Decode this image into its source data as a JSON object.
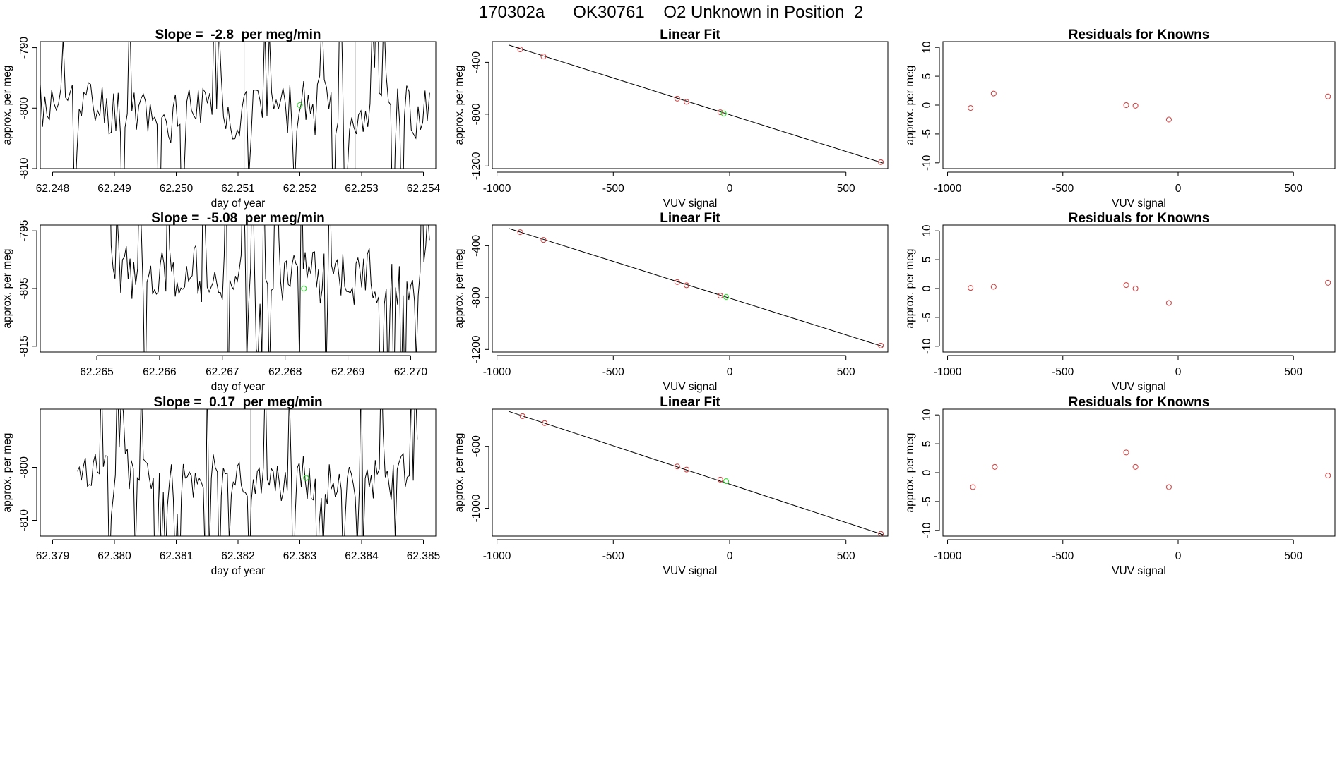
{
  "figure_title": "170302a      OK30761    O2 Unknown in Position  2",
  "chart_data": [
    {
      "type": "line",
      "title": "Slope =  -2.8  per meg/min",
      "xlabel": "day of year",
      "ylabel": "approx. per meg",
      "xlim": [
        62.2478,
        62.2542
      ],
      "ylim": [
        -810,
        -789
      ],
      "xticks": [
        62.248,
        62.249,
        62.25,
        62.251,
        62.252,
        62.253,
        62.254
      ],
      "xtick_labels": [
        "62.248",
        "62.249",
        "62.250",
        "62.251",
        "62.252",
        "62.253",
        "62.254"
      ],
      "yticks": [
        -810,
        -800,
        -790
      ],
      "ytick_labels": [
        "-810",
        "-800",
        "-790"
      ],
      "vlines": [
        62.2511,
        62.2529
      ],
      "seed": 11,
      "highlight": {
        "x": 62.252,
        "y": -799.5
      },
      "series": [
        {
          "name": "trace",
          "x_start": 62.2478,
          "x_end": 62.2541,
          "mean": -800,
          "spread": 14
        }
      ]
    },
    {
      "type": "scatter",
      "title": "Linear Fit",
      "xlabel": "VUV signal",
      "ylabel": "approx. per meg",
      "xlim": [
        -1020,
        680
      ],
      "ylim": [
        -1220,
        -240
      ],
      "xticks": [
        -1000,
        -500,
        0,
        500
      ],
      "xtick_labels": [
        "-1000",
        "-500",
        "0",
        "500"
      ],
      "yticks": [
        -1200,
        -800,
        -400
      ],
      "ytick_labels": [
        "-1200",
        "-800",
        "-400"
      ],
      "fit_line": {
        "x": [
          -950,
          660
        ],
        "y": [
          -266,
          -1178
        ]
      },
      "knowns": {
        "x": [
          -900,
          -800,
          -225,
          -185,
          -40,
          650
        ],
        "y": [
          -300,
          -355,
          -680,
          -705,
          -785,
          -1170
        ]
      },
      "unknown": {
        "x": [
          -25
        ],
        "y": [
          -795
        ]
      }
    },
    {
      "type": "scatter",
      "title": "Residuals for Knowns",
      "xlabel": "VUV signal",
      "ylabel": "approx. per meg",
      "xlim": [
        -1020,
        680
      ],
      "ylim": [
        -11,
        11
      ],
      "xticks": [
        -1000,
        -500,
        0,
        500
      ],
      "xtick_labels": [
        "-1000",
        "-500",
        "0",
        "500"
      ],
      "yticks": [
        -10,
        -5,
        0,
        5,
        10
      ],
      "ytick_labels": [
        "-10",
        "-5",
        "0",
        "5",
        "10"
      ],
      "knowns": {
        "x": [
          -900,
          -800,
          -225,
          -185,
          -40,
          650
        ],
        "y": [
          -0.5,
          2,
          0,
          -0.1,
          -2.5,
          1.5
        ]
      }
    },
    {
      "type": "line",
      "title": "Slope =  -5.08  per meg/min",
      "xlabel": "day of year",
      "ylabel": "approx. per meg",
      "xlim": [
        62.2641,
        62.2704
      ],
      "ylim": [
        -816,
        -794
      ],
      "xticks": [
        62.265,
        62.266,
        62.267,
        62.268,
        62.269,
        62.27
      ],
      "xtick_labels": [
        "62.265",
        "62.266",
        "62.267",
        "62.268",
        "62.269",
        "62.270"
      ],
      "yticks": [
        -815,
        -805,
        -795
      ],
      "ytick_labels": [
        "-815",
        "-805",
        "-795"
      ],
      "vlines": [
        62.2674
      ],
      "seed": 23,
      "highlight": {
        "x": 62.2683,
        "y": -805
      },
      "series": [
        {
          "name": "trace",
          "x_start": 62.2652,
          "x_end": 62.2703,
          "mean": -803,
          "spread": 14
        }
      ]
    },
    {
      "type": "scatter",
      "title": "Linear Fit",
      "xlabel": "VUV signal",
      "ylabel": "approx. per meg",
      "xlim": [
        -1020,
        680
      ],
      "ylim": [
        -1220,
        -240
      ],
      "xticks": [
        -1000,
        -500,
        0,
        500
      ],
      "xtick_labels": [
        "-1000",
        "-500",
        "0",
        "500"
      ],
      "yticks": [
        -1200,
        -800,
        -400
      ],
      "ytick_labels": [
        "-1200",
        "-800",
        "-400"
      ],
      "fit_line": {
        "x": [
          -950,
          660
        ],
        "y": [
          -266,
          -1178
        ]
      },
      "knowns": {
        "x": [
          -900,
          -800,
          -225,
          -185,
          -40,
          650
        ],
        "y": [
          -295,
          -355,
          -680,
          -705,
          -785,
          -1170
        ]
      },
      "unknown": {
        "x": [
          -15
        ],
        "y": [
          -795
        ]
      }
    },
    {
      "type": "scatter",
      "title": "Residuals for Knowns",
      "xlabel": "VUV signal",
      "ylabel": "approx. per meg",
      "xlim": [
        -1020,
        680
      ],
      "ylim": [
        -11,
        11
      ],
      "xticks": [
        -1000,
        -500,
        0,
        500
      ],
      "xtick_labels": [
        "-1000",
        "-500",
        "0",
        "500"
      ],
      "yticks": [
        -10,
        -5,
        0,
        5,
        10
      ],
      "ytick_labels": [
        "-10",
        "-5",
        "0",
        "5",
        "10"
      ],
      "knowns": {
        "x": [
          -900,
          -800,
          -225,
          -185,
          -40,
          650
        ],
        "y": [
          0.1,
          0.3,
          0.6,
          0,
          -2.5,
          1
        ]
      }
    },
    {
      "type": "line",
      "title": "Slope =  0.17  per meg/min",
      "xlabel": "day of year",
      "ylabel": "approx. per meg",
      "xlim": [
        62.3788,
        62.3852
      ],
      "ylim": [
        -813,
        -789
      ],
      "xticks": [
        62.379,
        62.38,
        62.381,
        62.382,
        62.383,
        62.384,
        62.385
      ],
      "xtick_labels": [
        "62.379",
        "62.380",
        "62.381",
        "62.382",
        "62.383",
        "62.384",
        "62.385"
      ],
      "yticks": [
        -810,
        -800
      ],
      "ytick_labels": [
        "-810",
        "-800"
      ],
      "vlines": [
        62.3822,
        62.384
      ],
      "seed": 37,
      "highlight": {
        "x": 62.3831,
        "y": -802
      },
      "series": [
        {
          "name": "trace",
          "x_start": 62.3794,
          "x_end": 62.3849,
          "mean": -802,
          "spread": 13
        }
      ]
    },
    {
      "type": "scatter",
      "title": "Linear Fit",
      "xlabel": "VUV signal",
      "ylabel": "approx. per meg",
      "xlim": [
        -1020,
        680
      ],
      "ylim": [
        -1180,
        -360
      ],
      "xticks": [
        -1000,
        -500,
        0,
        500
      ],
      "xtick_labels": [
        "-1000",
        "-500",
        "0",
        "500"
      ],
      "yticks": [
        -1000,
        -600
      ],
      "ytick_labels": [
        "-1000",
        "-600"
      ],
      "fit_line": {
        "x": [
          -950,
          660
        ],
        "y": [
          -374,
          -1171
        ]
      },
      "knowns": {
        "x": [
          -890,
          -795,
          -225,
          -185,
          -40,
          650
        ],
        "y": [
          -405,
          -450,
          -730,
          -750,
          -815,
          -1165
        ]
      },
      "unknown": {
        "x": [
          -15
        ],
        "y": [
          -825
        ]
      }
    },
    {
      "type": "scatter",
      "title": "Residuals for Knowns",
      "xlabel": "VUV signal",
      "ylabel": "approx. per meg",
      "xlim": [
        -1020,
        680
      ],
      "ylim": [
        -11,
        11
      ],
      "xticks": [
        -1000,
        -500,
        0,
        500
      ],
      "xtick_labels": [
        "-1000",
        "-500",
        "0",
        "500"
      ],
      "yticks": [
        -10,
        -5,
        0,
        5,
        10
      ],
      "ytick_labels": [
        "-10",
        "-5",
        "0",
        "5",
        "10"
      ],
      "knowns": {
        "x": [
          -890,
          -795,
          -225,
          -185,
          -40,
          650
        ],
        "y": [
          -2.5,
          1,
          3.5,
          1,
          -2.5,
          -0.5
        ]
      }
    }
  ]
}
